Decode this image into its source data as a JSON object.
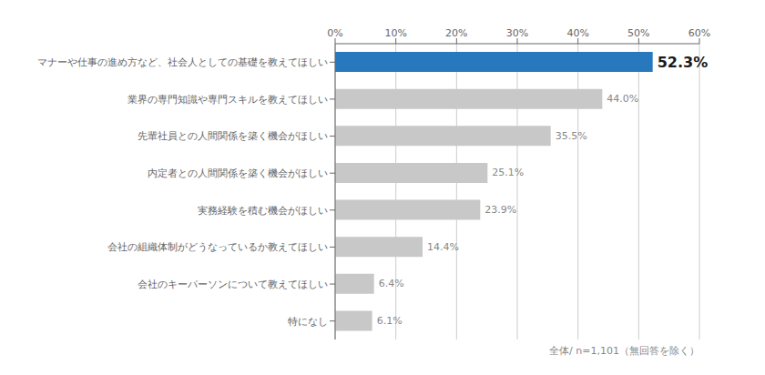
{
  "chart_data": {
    "type": "bar",
    "orientation": "horizontal",
    "categories": [
      "特になし",
      "会社のキーパーソンについて教えてほしい",
      "会社の組織体制がどうなっているか教えてほしい",
      "実務経験を積む機会がほしい",
      "内定者との人間関係を築く機会がほしい",
      "先輩社員との人間関係を築く機会がほしい",
      "業界の専門知識や専門スキルを教えてほしい",
      "マナーや仕事の進め方など、社会人としての基礎を教えてほしい"
    ],
    "values": [
      6.1,
      6.4,
      14.4,
      23.9,
      25.1,
      35.5,
      44.0,
      52.3
    ],
    "value_labels": [
      "6.1%",
      "6.4%",
      "14.4%",
      "23.9%",
      "25.1%",
      "35.5%",
      "44.0%",
      "52.3%"
    ],
    "data_labels": true,
    "colors": [
      "#c8c8c8",
      "#c8c8c8",
      "#c8c8c8",
      "#c8c8c8",
      "#c8c8c8",
      "#c8c8c8",
      "#c8c8c8",
      "#2878be"
    ],
    "xlim": [
      0,
      60
    ],
    "xticks": [
      {
        "value": 0,
        "label": "0%"
      },
      {
        "value": 10,
        "label": "10%"
      },
      {
        "value": 20,
        "label": "20%"
      },
      {
        "value": 30,
        "label": "30%"
      },
      {
        "value": 40,
        "label": "40%"
      },
      {
        "value": 50,
        "label": "50%"
      },
      {
        "value": 60,
        "label": "60%"
      }
    ],
    "grid": true,
    "annotations": [
      "全体/ n=1,101（無回答を除く）"
    ]
  }
}
